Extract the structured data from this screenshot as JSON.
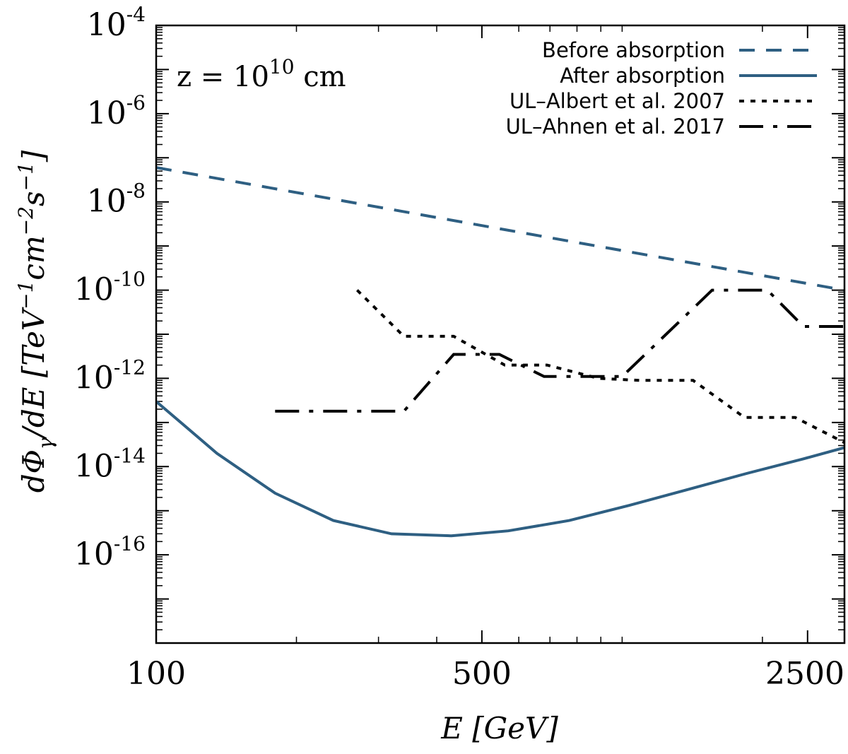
{
  "chart_data": {
    "type": "line",
    "xscale": "log",
    "yscale": "log",
    "xlabel": "E [GeV]",
    "ylabel": "dΦγ/dE [TeV⁻¹cm⁻²s⁻¹]",
    "xlim": [
      100,
      3000
    ],
    "ylim": [
      1e-18,
      0.0001
    ],
    "x_ticks": [
      100,
      500,
      2500
    ],
    "x_tick_labels": [
      "100",
      "500",
      "2500"
    ],
    "y_ticks": [
      {
        "value": 0.0001,
        "base": "10",
        "exp": "-4"
      },
      {
        "value": 1e-06,
        "base": "10",
        "exp": "-6"
      },
      {
        "value": 1e-08,
        "base": "10",
        "exp": "-8"
      },
      {
        "value": 1e-10,
        "base": "10",
        "exp": "-10"
      },
      {
        "value": 1e-12,
        "base": "10",
        "exp": "-12"
      },
      {
        "value": 1e-14,
        "base": "10",
        "exp": "-14"
      },
      {
        "value": 1e-16,
        "base": "10",
        "exp": "-16"
      }
    ],
    "annotation": {
      "prefix": "z = 10",
      "exp": "10",
      "suffix": " cm"
    },
    "series": [
      {
        "name": "Before absorption",
        "color": "#2e5f82",
        "dash": "dashed",
        "x": [
          100,
          3000
        ],
        "y": [
          6e-08,
          1e-10
        ]
      },
      {
        "name": "After absorption",
        "color": "#2e5f82",
        "dash": "solid",
        "x": [
          100,
          135,
          180,
          240,
          320,
          430,
          570,
          770,
          1030,
          1380,
          1850,
          2450,
          3000
        ],
        "y": [
          3e-13,
          2e-14,
          2.5e-15,
          6e-16,
          3e-16,
          2.7e-16,
          3.5e-16,
          6e-16,
          1.3e-15,
          3e-15,
          7e-15,
          1.5e-14,
          2.7e-14
        ]
      },
      {
        "name": "UL–Albert et al. 2007",
        "color": "#000000",
        "dash": "dotted",
        "x": [
          270,
          340,
          435,
          560,
          690,
          890,
          1090,
          1420,
          1830,
          2350,
          3000
        ],
        "y": [
          1e-10,
          9e-12,
          9e-12,
          2e-12,
          2e-12,
          1e-12,
          9e-13,
          9e-13,
          1.3e-13,
          1.3e-13,
          3.5e-14
        ]
      },
      {
        "name": "UL–Ahnen et al. 2017",
        "color": "#000000",
        "dash": "dashdot",
        "x": [
          180,
          340,
          435,
          545,
          680,
          820,
          1000,
          1560,
          2050,
          2450,
          3000
        ],
        "y": [
          1.8e-13,
          1.8e-13,
          3.5e-12,
          3.5e-12,
          1.1e-12,
          1.1e-12,
          1.1e-12,
          1e-10,
          1e-10,
          1.5e-11,
          1.5e-11
        ]
      }
    ]
  }
}
